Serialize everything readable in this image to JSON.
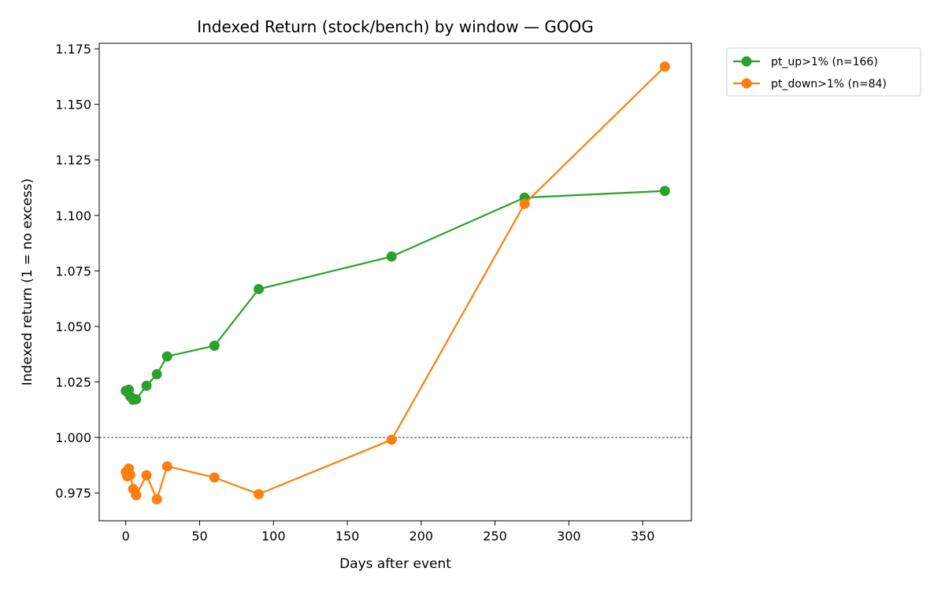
{
  "chart_data": {
    "type": "line",
    "title": "Indexed Return (stock/bench) by window — GOOG",
    "xlabel": "Days after event",
    "ylabel": "Indexed return (1 = no excess)",
    "xlim": [
      -18,
      383
    ],
    "ylim": [
      0.9625,
      1.1775
    ],
    "xticks": [
      0,
      50,
      100,
      150,
      200,
      250,
      300,
      350
    ],
    "yticks": [
      0.975,
      1.0,
      1.025,
      1.05,
      1.075,
      1.1,
      1.125,
      1.15,
      1.175
    ],
    "ytick_labels": [
      "0.975",
      "1.000",
      "1.025",
      "1.050",
      "1.075",
      "1.100",
      "1.125",
      "1.150",
      "1.175"
    ],
    "reference_line": {
      "y": 1.0,
      "style": "dashed"
    },
    "legend_position": "outside-top-right",
    "grid": false,
    "series": [
      {
        "name": "pt_up>1% (n=166)",
        "color": "#2ca02c",
        "x": [
          0,
          1,
          2,
          3,
          5,
          7,
          14,
          21,
          28,
          60,
          90,
          180,
          270,
          365
        ],
        "y": [
          1.021,
          1.0205,
          1.0215,
          1.0185,
          1.017,
          1.0172,
          1.0233,
          1.0285,
          1.0365,
          1.0413,
          1.0668,
          1.0815,
          1.108,
          1.111
        ]
      },
      {
        "name": "pt_down>1% (n=84)",
        "color": "#ff7f0e",
        "x": [
          0,
          1,
          2,
          3,
          5,
          7,
          14,
          21,
          28,
          60,
          90,
          180,
          270,
          365
        ],
        "y": [
          0.9845,
          0.9825,
          0.986,
          0.9832,
          0.9768,
          0.974,
          0.983,
          0.9722,
          0.987,
          0.982,
          0.9745,
          0.999,
          1.1052,
          1.167
        ]
      }
    ]
  }
}
